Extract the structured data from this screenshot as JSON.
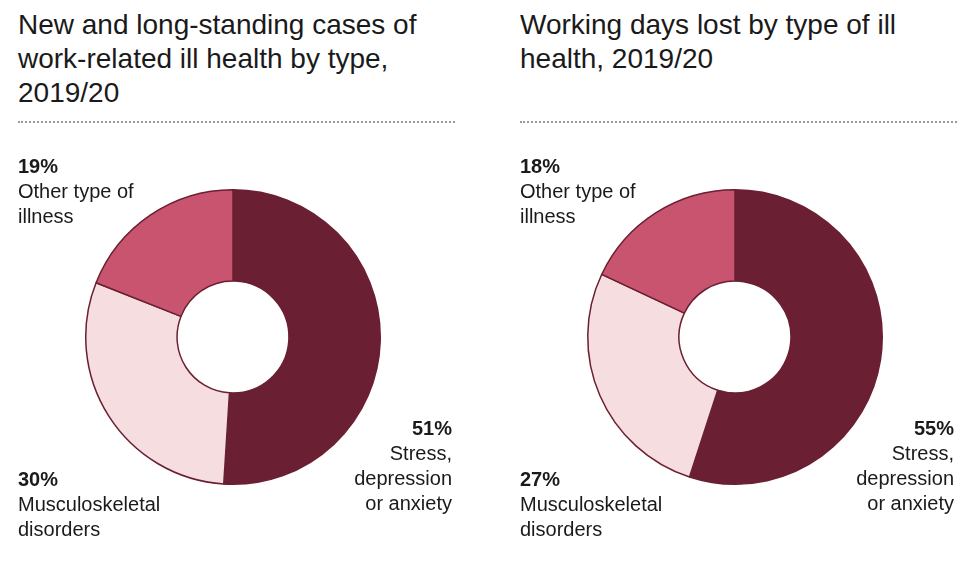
{
  "chart_data": [
    {
      "type": "doughnut",
      "title": "New and long-standing cases of work-related ill health by type, 2019/20",
      "categories": [
        "Stress, depression or anxiety",
        "Musculoskeletal disorders",
        "Other type of illness"
      ],
      "values": [
        51,
        30,
        19
      ],
      "value_labels": [
        "51%",
        "30%",
        "19%"
      ],
      "colors": [
        "#6b1f33",
        "#f5dde0",
        "#c95470"
      ],
      "data_labels": true
    },
    {
      "type": "doughnut",
      "title": "Working days lost by type of ill health, 2019/20",
      "categories": [
        "Stress, depression or anxiety",
        "Musculoskeletal disorders",
        "Other type of illness"
      ],
      "values": [
        55,
        27,
        18
      ],
      "value_labels": [
        "55%",
        "27%",
        "18%"
      ],
      "colors": [
        "#6b1f33",
        "#f5dde0",
        "#c95470"
      ],
      "data_labels": true
    }
  ]
}
